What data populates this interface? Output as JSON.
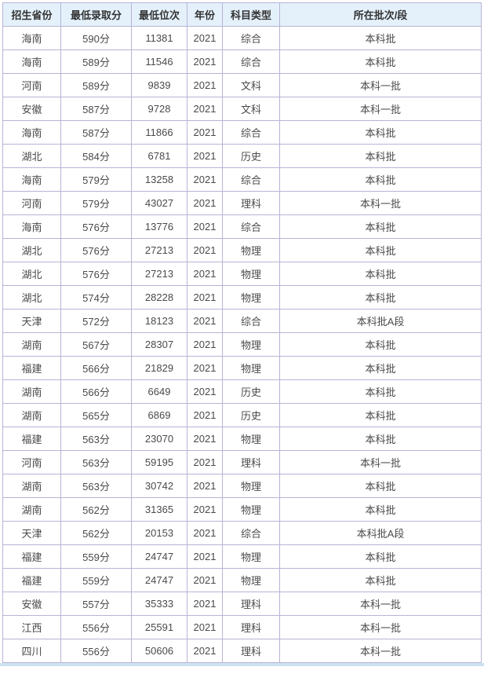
{
  "colors": {
    "header_bg": "#e4f1fb",
    "border": "#b9b3d6",
    "header_text": "#333333",
    "cell_text": "#4a4a4a",
    "bottom_bar": "#cde2f0",
    "page_bg": "#ffffff"
  },
  "table": {
    "columns": [
      "招生省份",
      "最低录取分",
      "最低位次",
      "年份",
      "科目类型",
      "所在批次/段"
    ],
    "rows": [
      [
        "海南",
        "590分",
        "11381",
        "2021",
        "综合",
        "本科批"
      ],
      [
        "海南",
        "589分",
        "11546",
        "2021",
        "综合",
        "本科批"
      ],
      [
        "河南",
        "589分",
        "9839",
        "2021",
        "文科",
        "本科一批"
      ],
      [
        "安徽",
        "587分",
        "9728",
        "2021",
        "文科",
        "本科一批"
      ],
      [
        "海南",
        "587分",
        "11866",
        "2021",
        "综合",
        "本科批"
      ],
      [
        "湖北",
        "584分",
        "6781",
        "2021",
        "历史",
        "本科批"
      ],
      [
        "海南",
        "579分",
        "13258",
        "2021",
        "综合",
        "本科批"
      ],
      [
        "河南",
        "579分",
        "43027",
        "2021",
        "理科",
        "本科一批"
      ],
      [
        "海南",
        "576分",
        "13776",
        "2021",
        "综合",
        "本科批"
      ],
      [
        "湖北",
        "576分",
        "27213",
        "2021",
        "物理",
        "本科批"
      ],
      [
        "湖北",
        "576分",
        "27213",
        "2021",
        "物理",
        "本科批"
      ],
      [
        "湖北",
        "574分",
        "28228",
        "2021",
        "物理",
        "本科批"
      ],
      [
        "天津",
        "572分",
        "18123",
        "2021",
        "综合",
        "本科批A段"
      ],
      [
        "湖南",
        "567分",
        "28307",
        "2021",
        "物理",
        "本科批"
      ],
      [
        "福建",
        "566分",
        "21829",
        "2021",
        "物理",
        "本科批"
      ],
      [
        "湖南",
        "566分",
        "6649",
        "2021",
        "历史",
        "本科批"
      ],
      [
        "湖南",
        "565分",
        "6869",
        "2021",
        "历史",
        "本科批"
      ],
      [
        "福建",
        "563分",
        "23070",
        "2021",
        "物理",
        "本科批"
      ],
      [
        "河南",
        "563分",
        "59195",
        "2021",
        "理科",
        "本科一批"
      ],
      [
        "湖南",
        "563分",
        "30742",
        "2021",
        "物理",
        "本科批"
      ],
      [
        "湖南",
        "562分",
        "31365",
        "2021",
        "物理",
        "本科批"
      ],
      [
        "天津",
        "562分",
        "20153",
        "2021",
        "综合",
        "本科批A段"
      ],
      [
        "福建",
        "559分",
        "24747",
        "2021",
        "物理",
        "本科批"
      ],
      [
        "福建",
        "559分",
        "24747",
        "2021",
        "物理",
        "本科批"
      ],
      [
        "安徽",
        "557分",
        "35333",
        "2021",
        "理科",
        "本科一批"
      ],
      [
        "江西",
        "556分",
        "25591",
        "2021",
        "理科",
        "本科一批"
      ],
      [
        "四川",
        "556分",
        "50606",
        "2021",
        "理科",
        "本科一批"
      ]
    ]
  }
}
